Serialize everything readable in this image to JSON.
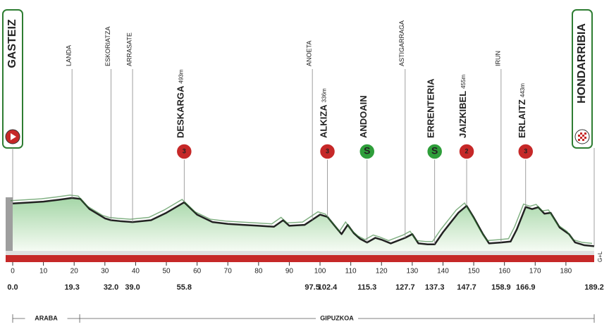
{
  "chart_data": {
    "type": "area",
    "x": [
      0,
      5,
      10,
      15,
      19.3,
      22,
      25,
      30,
      32,
      35,
      39,
      45,
      50,
      55.8,
      60,
      65,
      70,
      75,
      80,
      85,
      88,
      90,
      95,
      100,
      102.4,
      105,
      107,
      109,
      111,
      113,
      115.3,
      118,
      120,
      123,
      127.7,
      130,
      132,
      135,
      137.3,
      140,
      145,
      147.7,
      150,
      153,
      155,
      158.9,
      162,
      164,
      166.9,
      169,
      171,
      173,
      175,
      178,
      181,
      183,
      186,
      189.2
    ],
    "values": [
      480,
      490,
      500,
      520,
      540,
      530,
      420,
      320,
      300,
      290,
      280,
      300,
      380,
      493,
      360,
      280,
      260,
      250,
      240,
      230,
      300,
      240,
      250,
      360,
      336,
      230,
      150,
      250,
      160,
      100,
      60,
      110,
      90,
      50,
      110,
      150,
      50,
      40,
      40,
      170,
      380,
      455,
      330,
      150,
      50,
      60,
      70,
      200,
      443,
      420,
      440,
      370,
      380,
      220,
      150,
      60,
      30,
      20
    ],
    "color": "#2e7d32",
    "xlim": [
      0,
      189.2
    ],
    "ylim": [
      0,
      600
    ],
    "xticks": [
      0,
      10,
      20,
      30,
      40,
      50,
      60,
      70,
      80,
      90,
      100,
      110,
      120,
      130,
      140,
      150,
      160,
      170,
      180
    ],
    "waypoints": [
      {
        "km": {
          "value": 0,
          "label": "0.0"
        },
        "name": "GASTEIZ",
        "kind": "start"
      },
      {
        "km": {
          "value": 19.3,
          "label": "19.3"
        },
        "name": "LANDA",
        "kind": "town"
      },
      {
        "km": {
          "value": 32,
          "label": "32.0"
        },
        "name": "ESKORIATZA",
        "kind": "town"
      },
      {
        "km": {
          "value": 39,
          "label": "39.0"
        },
        "name": "ARRASATE",
        "kind": "town"
      },
      {
        "km": {
          "value": 55.8,
          "label": "55.8"
        },
        "name": "DESKARGA",
        "altitude": "493m",
        "category": "3",
        "kind": "climb"
      },
      {
        "km": {
          "value": 97.5,
          "label": "97.5"
        },
        "name": "ANOETA",
        "kind": "town"
      },
      {
        "km": {
          "value": 102.4,
          "label": "102.4"
        },
        "name": "ALKIZA",
        "altitude": "336m",
        "category": "3",
        "kind": "climb"
      },
      {
        "km": {
          "value": 115.3,
          "label": "115.3"
        },
        "name": "ANDOAIN",
        "category": "S",
        "kind": "sprint"
      },
      {
        "km": {
          "value": 127.7,
          "label": "127.7"
        },
        "name": "ASTIGARRAGA",
        "kind": "town"
      },
      {
        "km": {
          "value": 137.3,
          "label": "137.3"
        },
        "name": "ERRENTERIA",
        "category": "S",
        "kind": "sprint"
      },
      {
        "km": {
          "value": 147.7,
          "label": "147.7"
        },
        "name": "JAIZKIBEL",
        "altitude": "455m",
        "category": "2",
        "kind": "climb"
      },
      {
        "km": {
          "value": 158.9,
          "label": "158.9"
        },
        "name": "IRUN",
        "kind": "town"
      },
      {
        "km": {
          "value": 166.9,
          "label": "166.9"
        },
        "name": "ERLAITZ",
        "altitude": "443m",
        "category": "3",
        "kind": "climb"
      },
      {
        "km": {
          "value": 189.2,
          "label": "189.2"
        },
        "name": "HONDARRIBIA",
        "kind": "finish"
      }
    ],
    "regions": [
      {
        "name": "ARABA",
        "from": 0,
        "to": 21.8
      },
      {
        "name": "GIPUZKOA",
        "from": 21.8,
        "to": 189.2
      }
    ],
    "note": "G+L"
  }
}
